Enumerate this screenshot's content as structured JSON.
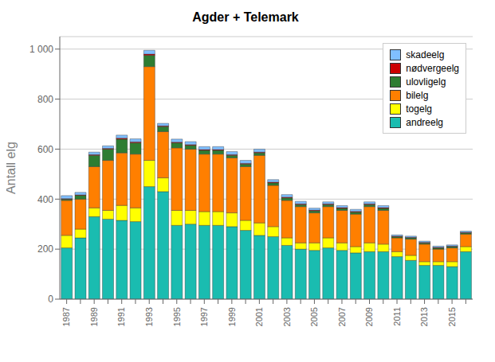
{
  "chart_data": {
    "type": "bar",
    "stacked": true,
    "title": "Agder + Telemark",
    "ylabel": "Antall elg",
    "categories": [
      "1987",
      null,
      "1989",
      null,
      "1991",
      null,
      "1993",
      null,
      "1995",
      null,
      "1997",
      null,
      "1999",
      null,
      "2001",
      null,
      "2003",
      null,
      "2005",
      null,
      "2007",
      null,
      "2009",
      null,
      "2011",
      null,
      "2013",
      null,
      "2015",
      null
    ],
    "series": [
      {
        "name": "andreelg",
        "color": "#1ABCB0",
        "values": [
          205,
          245,
          330,
          320,
          315,
          310,
          450,
          430,
          295,
          300,
          295,
          295,
          290,
          275,
          255,
          250,
          215,
          200,
          195,
          205,
          195,
          185,
          190,
          190,
          170,
          155,
          135,
          135,
          130,
          190
        ]
      },
      {
        "name": "togelg",
        "color": "#FFFF00",
        "values": [
          50,
          35,
          35,
          35,
          60,
          55,
          105,
          55,
          60,
          55,
          55,
          55,
          55,
          40,
          50,
          40,
          30,
          25,
          30,
          40,
          30,
          25,
          35,
          30,
          20,
          20,
          15,
          15,
          20,
          20
        ]
      },
      {
        "name": "bilelg",
        "color": "#FF7F00",
        "values": [
          140,
          120,
          165,
          200,
          210,
          215,
          375,
          185,
          250,
          245,
          230,
          230,
          220,
          215,
          270,
          165,
          150,
          145,
          120,
          125,
          130,
          130,
          145,
          135,
          55,
          65,
          70,
          50,
          55,
          50
        ]
      },
      {
        "name": "ulovligelg",
        "color": "#2E7D32",
        "values": [
          5,
          15,
          45,
          45,
          55,
          45,
          45,
          20,
          20,
          15,
          15,
          15,
          10,
          10,
          10,
          10,
          10,
          8,
          8,
          8,
          8,
          8,
          8,
          8,
          5,
          5,
          5,
          5,
          5,
          5
        ]
      },
      {
        "name": "nødvergeelg",
        "color": "#CC0000",
        "values": [
          2,
          2,
          3,
          3,
          4,
          4,
          5,
          3,
          3,
          3,
          3,
          3,
          3,
          3,
          3,
          3,
          3,
          3,
          3,
          3,
          3,
          3,
          3,
          3,
          2,
          2,
          2,
          2,
          2,
          2
        ]
      },
      {
        "name": "skadeelg",
        "color": "#80BFFF",
        "values": [
          12,
          10,
          10,
          10,
          12,
          12,
          15,
          10,
          12,
          12,
          12,
          12,
          12,
          12,
          12,
          10,
          10,
          10,
          8,
          8,
          8,
          8,
          8,
          8,
          5,
          5,
          5,
          5,
          5,
          5
        ]
      }
    ],
    "ylim": [
      0,
      1050
    ],
    "yticks": [
      0,
      200,
      400,
      600,
      800,
      {
        "value": 1000,
        "label": "1 000"
      }
    ],
    "grid": true,
    "legend": "upper right"
  }
}
